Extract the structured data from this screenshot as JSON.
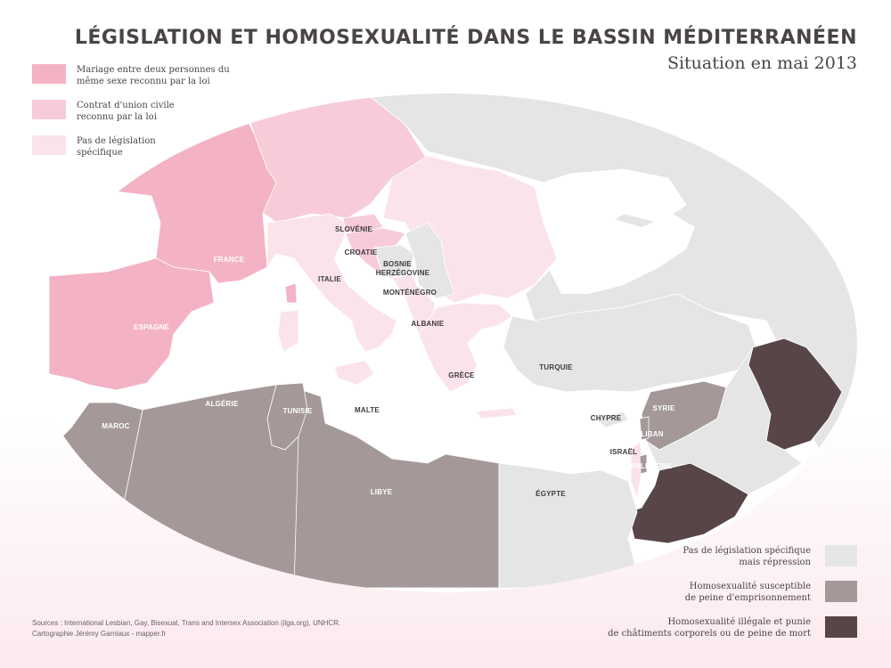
{
  "title": "LÉGISLATION ET HOMOSEXUALITÉ DANS LE BASSIN MÉDITERRANÉEN",
  "subtitle": "Situation en mai 2013",
  "colors": {
    "mariage": "#f3b3c4",
    "union": "#f7ccd8",
    "aucune": "#fbe3ea",
    "repression": "#e6e5e6",
    "prison": "#a49899",
    "chatiments": "#574548",
    "sea": "#ffffff",
    "border": "#ffffff"
  },
  "legend_top": [
    {
      "key": "mariage",
      "line1": "Mariage entre deux personnes du",
      "line2": "même sexe reconnu par la loi"
    },
    {
      "key": "union",
      "line1": "Contrat d'union civile",
      "line2": "reconnu par la loi"
    },
    {
      "key": "aucune",
      "line1": "Pas de législation",
      "line2": "spécifique"
    }
  ],
  "legend_bottom": [
    {
      "key": "repression",
      "line1": "Pas de législation spécifique",
      "line2": "mais répression"
    },
    {
      "key": "prison",
      "line1": "Homosexualité susceptible",
      "line2": "de peine d'emprisonnement"
    },
    {
      "key": "chatiments",
      "line1": "Homosexualité illégale et punie",
      "line2": "de châtiments corporels ou de peine de mort"
    }
  ],
  "labels": {
    "france": "FRANCE",
    "espagne": "ESPAGNE",
    "italie": "ITALIE",
    "slovenie": "SLOVÉNIE",
    "croatie": "CROATIE",
    "bosnie1": "BOSNIE",
    "bosnie2": "HERZÉGOVINE",
    "montenegro": "MONTÉNÉGRO",
    "albanie": "ALBANIE",
    "grece": "GRÈCE",
    "turquie": "TURQUIE",
    "chypre": "CHYPRE",
    "syrie": "SYRIE",
    "liban": "LIBAN",
    "israel": "ISRAËL",
    "palestine": "PALESTINE",
    "egypte": "ÉGYPTE",
    "libye": "LIBYE",
    "tunisie": "TUNISIE",
    "algerie": "ALGÉRIE",
    "maroc": "MAROC",
    "malte": "MALTE"
  },
  "sources": {
    "line1": "Sources : International Lesbian, Gay, Bisexual, Trans and Intersex Association (ilga.org), UNHCR.",
    "line2": "Cartographie Jérémy Garniaux - mapper.fr"
  }
}
